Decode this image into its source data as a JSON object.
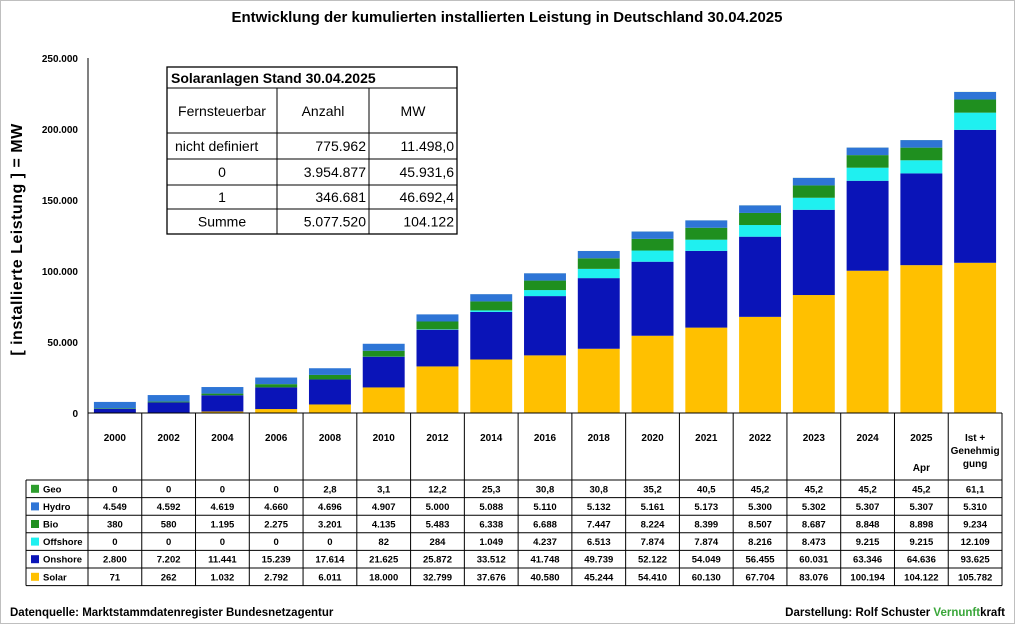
{
  "chart_data": {
    "type": "stacked-bar",
    "title": "Entwicklung der kumulierten installierten Leistung in Deutschland   30.04.2025",
    "ylabel": "[ installierte Leistung ] = MW",
    "ylim": [
      0,
      250000
    ],
    "yticks": [
      "0",
      "50.000",
      "100.000",
      "150.000",
      "200.000",
      "250.000"
    ],
    "grid": false,
    "legend": "table-bottom",
    "categories": [
      "2000",
      "2002",
      "2004",
      "2006",
      "2008",
      "2010",
      "2012",
      "2014",
      "2016",
      "2018",
      "2020",
      "2021",
      "2022",
      "2023",
      "2024",
      "2025",
      "Ist + Genehmigung"
    ],
    "category_lines": [
      [
        "2000"
      ],
      [
        "2002"
      ],
      [
        "2004"
      ],
      [
        "2006"
      ],
      [
        "2008"
      ],
      [
        "2010"
      ],
      [
        "2012"
      ],
      [
        "2014"
      ],
      [
        "2016"
      ],
      [
        "2018"
      ],
      [
        "2020"
      ],
      [
        "2021"
      ],
      [
        "2022"
      ],
      [
        "2023"
      ],
      [
        "2024"
      ],
      [
        "2025"
      ],
      [
        "Ist +",
        "Genehmig",
        "gung"
      ]
    ],
    "category_sublabel": {
      "index": 15,
      "text": "Apr"
    },
    "series": [
      {
        "name": "Geo",
        "color": "#2e9e2e",
        "values": [
          0,
          0,
          0,
          0,
          2.8,
          3.1,
          12.2,
          25.3,
          30.8,
          30.8,
          35.2,
          40.5,
          45.2,
          45.2,
          45.2,
          45.2,
          61.1
        ],
        "labels": [
          "0",
          "0",
          "0",
          "0",
          "2,8",
          "3,1",
          "12,2",
          "25,3",
          "30,8",
          "30,8",
          "35,2",
          "40,5",
          "45,2",
          "45,2",
          "45,2",
          "45,2",
          "61,1"
        ]
      },
      {
        "name": "Hydro",
        "color": "#2e75d6",
        "values": [
          4549,
          4592,
          4619,
          4660,
          4696,
          4907,
          5000,
          5088,
          5110,
          5132,
          5161,
          5173,
          5300,
          5302,
          5307,
          5307,
          5310
        ],
        "labels": [
          "4.549",
          "4.592",
          "4.619",
          "4.660",
          "4.696",
          "4.907",
          "5.000",
          "5.088",
          "5.110",
          "5.132",
          "5.161",
          "5.173",
          "5.300",
          "5.302",
          "5.307",
          "5.307",
          "5.310"
        ]
      },
      {
        "name": "Bio",
        "color": "#1f8f1f",
        "values": [
          380,
          580,
          1195,
          2275,
          3201,
          4135,
          5483,
          6338,
          6688,
          7447,
          8224,
          8399,
          8507,
          8687,
          8848,
          8898,
          9234
        ],
        "labels": [
          "380",
          "580",
          "1.195",
          "2.275",
          "3.201",
          "4.135",
          "5.483",
          "6.338",
          "6.688",
          "7.447",
          "8.224",
          "8.399",
          "8.507",
          "8.687",
          "8.848",
          "8.898",
          "9.234"
        ]
      },
      {
        "name": "Offshore",
        "color": "#1ff0f0",
        "values": [
          0,
          0,
          0,
          0,
          0,
          82,
          284,
          1049,
          4237,
          6513,
          7874,
          7874,
          8216,
          8473,
          9215,
          9215,
          12109
        ],
        "labels": [
          "0",
          "0",
          "0",
          "0",
          "0",
          "82",
          "284",
          "1.049",
          "4.237",
          "6.513",
          "7.874",
          "7.874",
          "8.216",
          "8.473",
          "9.215",
          "9.215",
          "12.109"
        ]
      },
      {
        "name": "Onshore",
        "color": "#0a14b8",
        "values": [
          2800,
          7202,
          11441,
          15239,
          17614,
          21625,
          25872,
          33512,
          41748,
          49739,
          52122,
          54049,
          56455,
          60031,
          63346,
          64636,
          93625
        ],
        "labels": [
          "2.800",
          "7.202",
          "11.441",
          "15.239",
          "17.614",
          "21.625",
          "25.872",
          "33.512",
          "41.748",
          "49.739",
          "52.122",
          "54.049",
          "56.455",
          "60.031",
          "63.346",
          "64.636",
          "93.625"
        ]
      },
      {
        "name": "Solar",
        "color": "#ffc000",
        "values": [
          71,
          262,
          1032,
          2792,
          6011,
          18000,
          32799,
          37676,
          40580,
          45244,
          54410,
          60130,
          67704,
          83076,
          100194,
          104122,
          105782
        ],
        "labels": [
          "71",
          "262",
          "1.032",
          "2.792",
          "6.011",
          "18.000",
          "32.799",
          "37.676",
          "40.580",
          "45.244",
          "54.410",
          "60.130",
          "67.704",
          "83.076",
          "100.194",
          "104.122",
          "105.782"
        ]
      }
    ]
  },
  "inset_table": {
    "title": "Solaranlagen Stand 30.04.2025",
    "headers": [
      "Fernsteuerbar",
      "Anzahl",
      "MW"
    ],
    "rows": [
      [
        "nicht definiert",
        "775.962",
        "11.498,0"
      ],
      [
        "0",
        "3.954.877",
        "45.931,6"
      ],
      [
        "1",
        "346.681",
        "46.692,4"
      ],
      [
        "Summe",
        "5.077.520",
        "104.122"
      ]
    ]
  },
  "footer": {
    "source": "Datenquelle: Marktstammdatenregister Bundesnetzagentur",
    "credit": "Darstellung:  Rolf Schuster",
    "brand_a": "Vernunft",
    "brand_b": "kraft",
    "brand_a_color": "#3aa63a"
  }
}
